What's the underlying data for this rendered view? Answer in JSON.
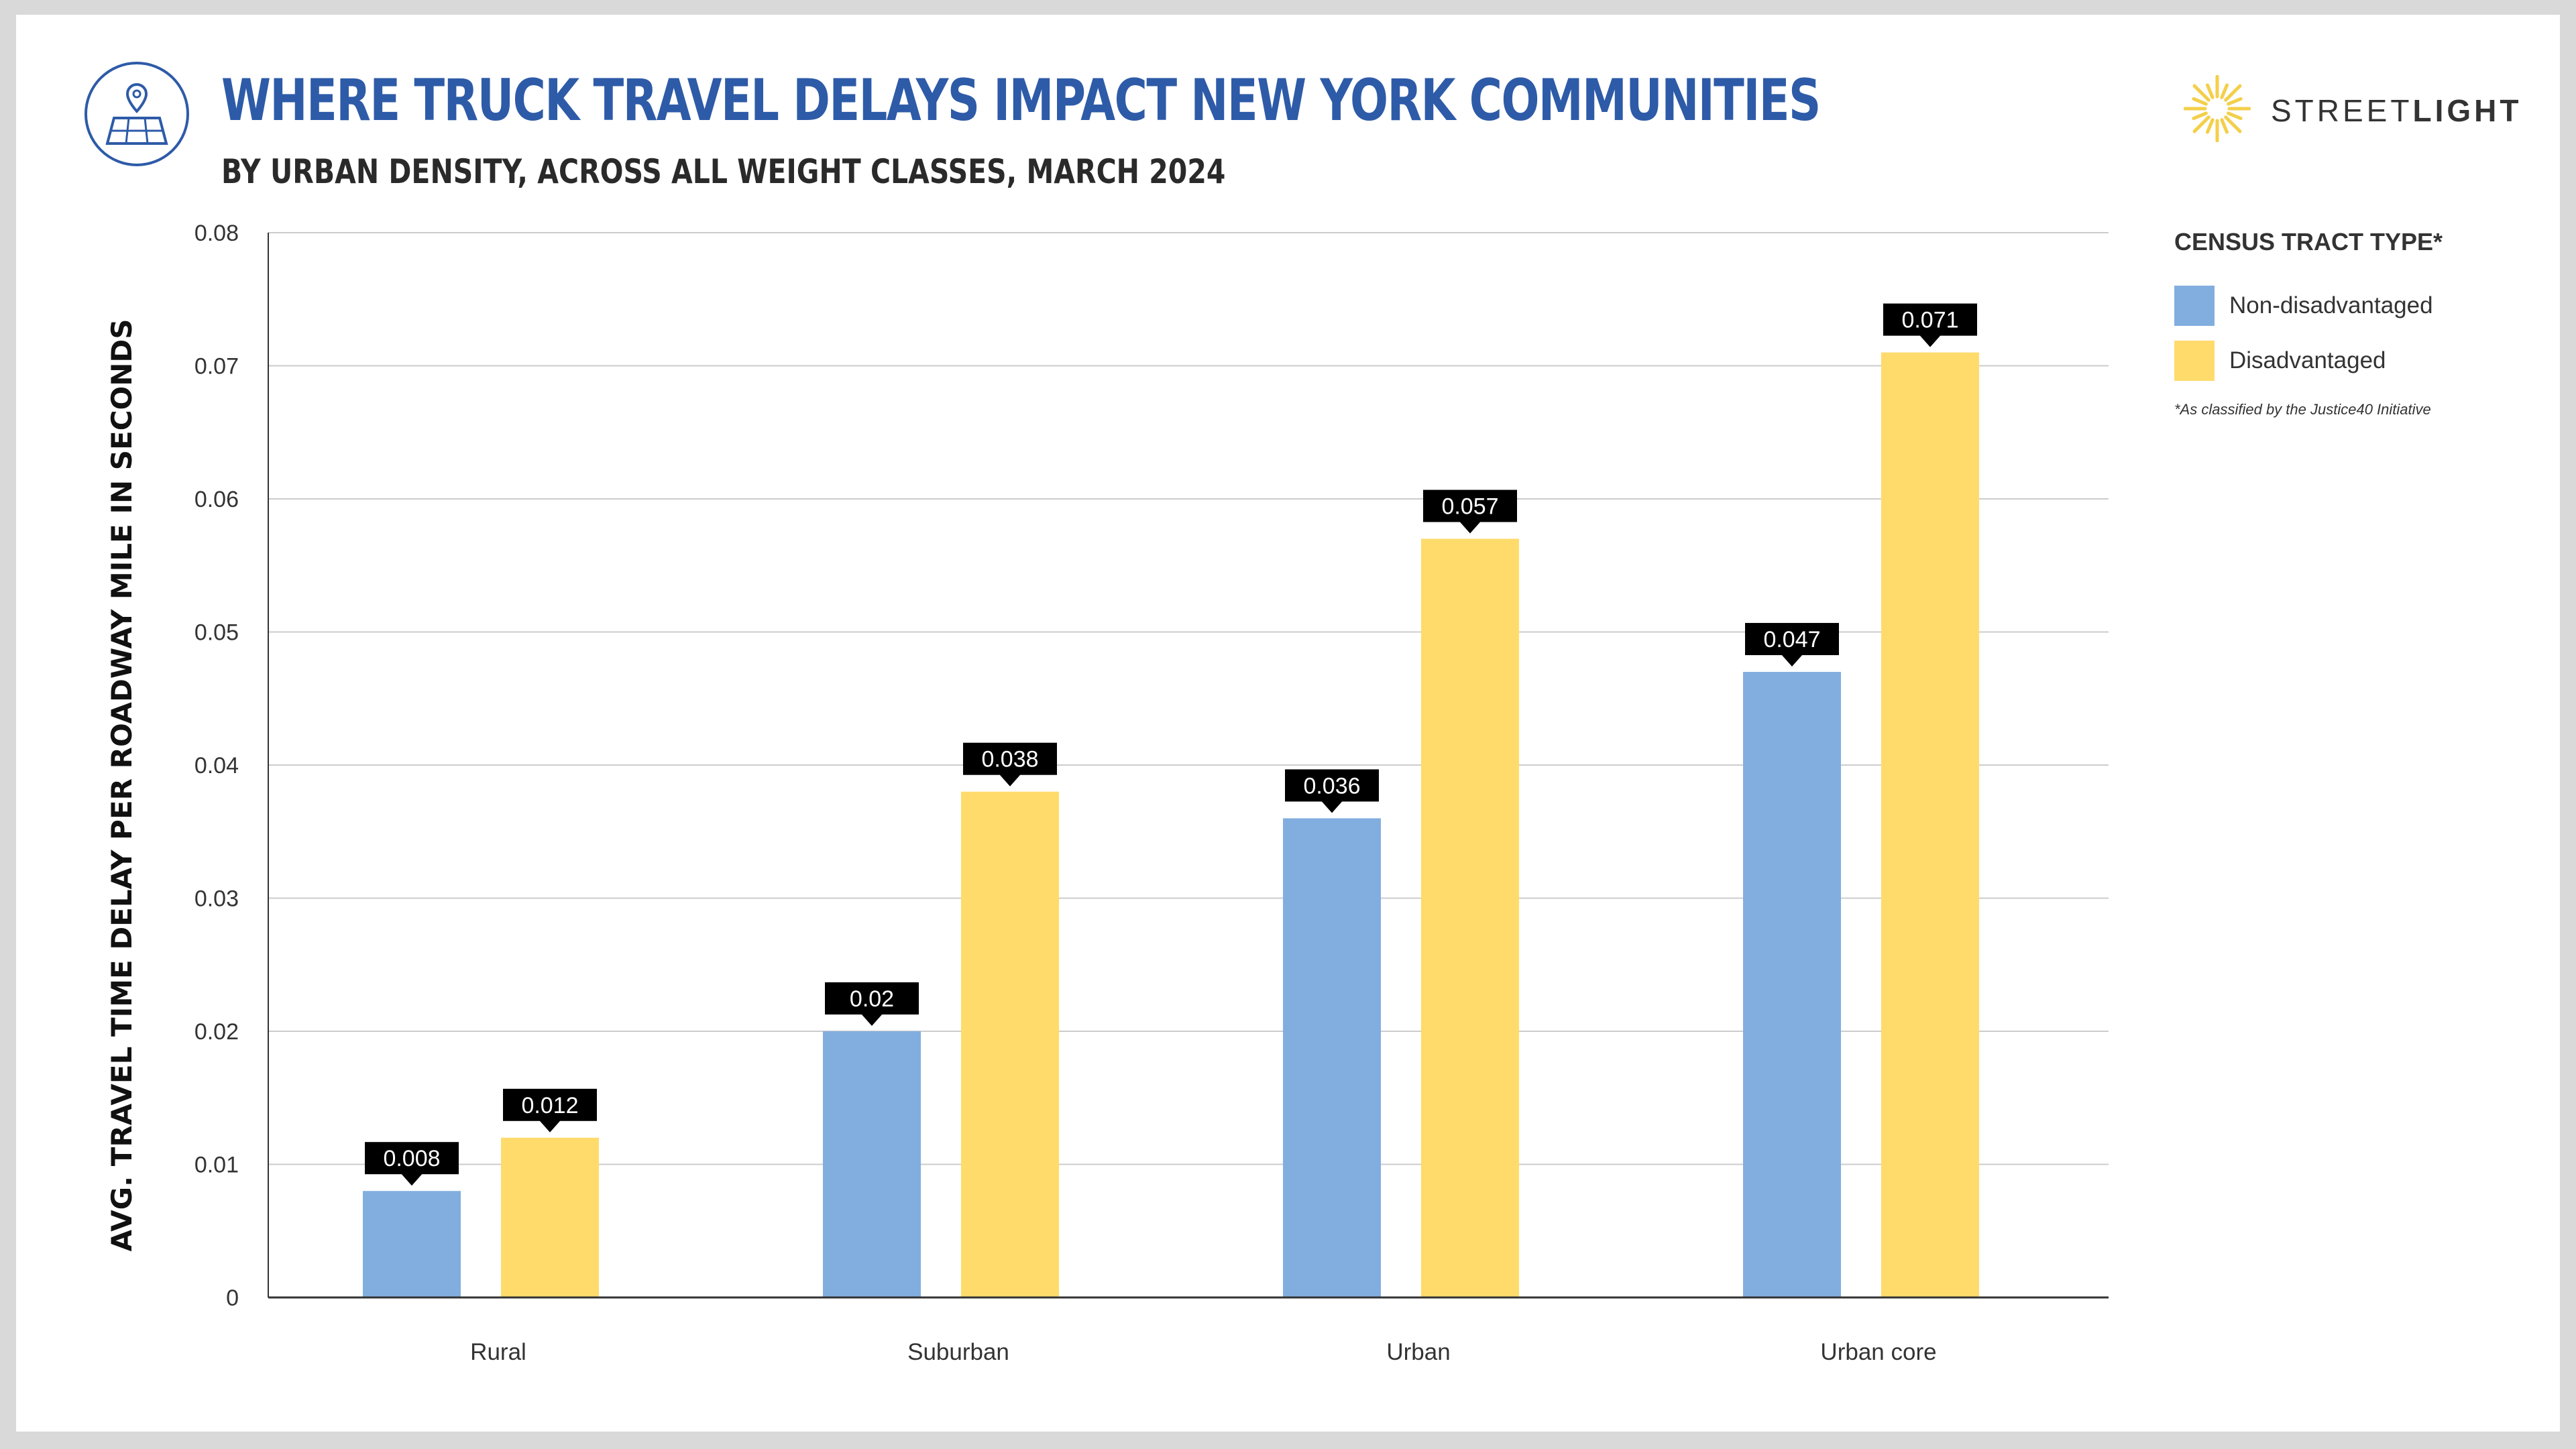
{
  "header": {
    "title": "WHERE TRUCK TRAVEL DELAYS IMPACT NEW YORK COMMUNITIES",
    "subtitle": "BY URBAN DENSITY, ACROSS ALL WEIGHT CLASSES, MARCH 2024"
  },
  "brand": {
    "name_light": "STREET",
    "name_bold": "LIGHT",
    "accent_color": "#f3cf4a"
  },
  "legend": {
    "title": "CENSUS TRACT TYPE*",
    "items": [
      {
        "label": "Non-disadvantaged",
        "color": "#82aedf"
      },
      {
        "label": "Disadvantaged",
        "color": "#ffdb6b"
      }
    ],
    "note": "*As classified by the Justice40 Initiative"
  },
  "icons": {
    "header_icon": "map-pin-icon",
    "brand_icon": "sun-burst-icon"
  },
  "chart_data": {
    "type": "bar",
    "categories": [
      "Rural",
      "Suburban",
      "Urban",
      "Urban core"
    ],
    "series": [
      {
        "name": "Non-disadvantaged",
        "color": "#82aedf",
        "values": [
          0.008,
          0.02,
          0.036,
          0.047
        ]
      },
      {
        "name": "Disadvantaged",
        "color": "#ffdb6b",
        "values": [
          0.012,
          0.038,
          0.057,
          0.071
        ]
      }
    ],
    "ylabel": "AVG. TRAVEL TIME DELAY PER ROADWAY MILE IN SECONDS",
    "ylim": [
      0,
      0.08
    ],
    "yticks": [
      "0",
      "0.01",
      "0.02",
      "0.03",
      "0.04",
      "0.05",
      "0.06",
      "0.07",
      "0.08"
    ],
    "grid": true,
    "legend_position": "right"
  }
}
